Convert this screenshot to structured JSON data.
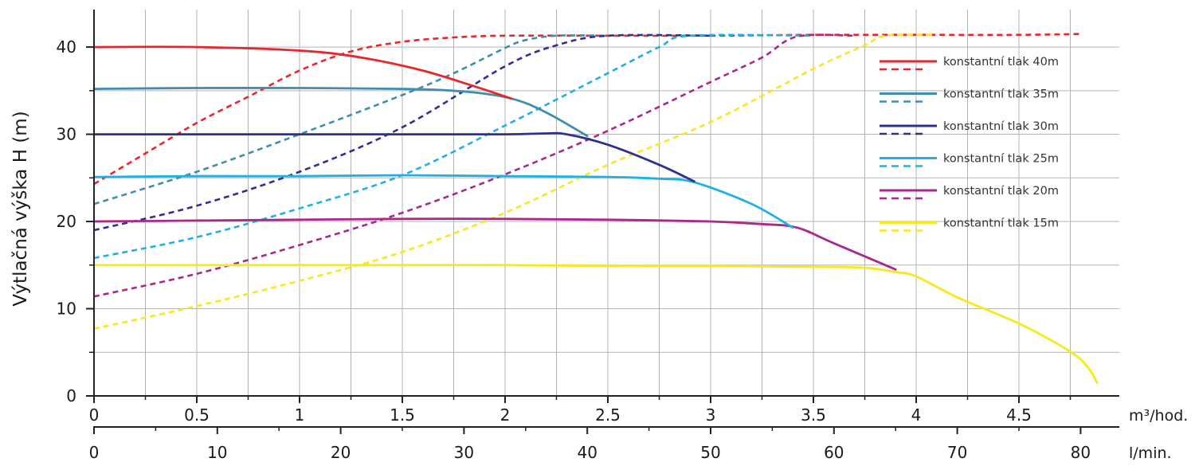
{
  "chart_data": {
    "type": "line",
    "title": "",
    "ylabel": "Výtlačná výška H (m)",
    "ylim": [
      0,
      43
    ],
    "y_ticks": [
      0,
      10,
      20,
      30,
      40
    ],
    "x_axes": [
      {
        "unit": "m³/hod.",
        "range": [
          0,
          5
        ],
        "ticks": [
          0,
          0.5,
          1,
          1.5,
          2,
          2.5,
          3,
          3.5,
          4,
          4.5
        ],
        "tick_labels": [
          "0",
          "0.5",
          "1",
          "1.5",
          "2",
          "2.5",
          "3",
          "3.5",
          "4",
          "4.5"
        ]
      },
      {
        "unit": "l/min.",
        "range": [
          0,
          83.3
        ],
        "ticks": [
          0,
          10,
          20,
          30,
          40,
          50,
          60,
          70,
          80
        ],
        "tick_labels": [
          "0",
          "10",
          "20",
          "30",
          "40",
          "50",
          "60",
          "70",
          "80"
        ]
      }
    ],
    "grid": true,
    "legend_position": "top-right",
    "series": [
      {
        "name": "konstantní tlak 40m",
        "color": "#e8262b",
        "solid": [
          [
            0,
            40
          ],
          [
            0.5,
            40
          ],
          [
            1,
            39.6
          ],
          [
            1.3,
            38.8
          ],
          [
            1.6,
            37.3
          ],
          [
            1.85,
            35.5
          ],
          [
            2.03,
            34.1
          ]
        ],
        "dashed": [
          [
            0,
            24.3
          ],
          [
            0.25,
            27.8
          ],
          [
            0.5,
            31.3
          ],
          [
            0.75,
            34.3
          ],
          [
            1,
            37.3
          ],
          [
            1.25,
            39.5
          ],
          [
            1.5,
            40.6
          ],
          [
            1.75,
            41.1
          ],
          [
            2,
            41.3
          ],
          [
            2.5,
            41.3
          ],
          [
            3,
            41.3
          ],
          [
            3.5,
            41.4
          ],
          [
            4,
            41.4
          ],
          [
            4.5,
            41.4
          ],
          [
            4.8,
            41.5
          ]
        ]
      },
      {
        "name": "konstantní tlak 35m",
        "color": "#3f8eae",
        "solid": [
          [
            0,
            35.2
          ],
          [
            0.5,
            35.3
          ],
          [
            1,
            35.3
          ],
          [
            1.5,
            35.2
          ],
          [
            1.8,
            34.9
          ],
          [
            2.03,
            34.1
          ],
          [
            2.2,
            32.5
          ],
          [
            2.4,
            29.8
          ]
        ],
        "dashed": [
          [
            0,
            22
          ],
          [
            0.5,
            25.7
          ],
          [
            1,
            30
          ],
          [
            1.5,
            34.5
          ],
          [
            1.75,
            37
          ],
          [
            2,
            39.9
          ],
          [
            2.1,
            40.8
          ],
          [
            2.25,
            41.3
          ],
          [
            2.5,
            41.3
          ]
        ]
      },
      {
        "name": "konstantní tlak 30m",
        "color": "#2e3192",
        "solid": [
          [
            0,
            30
          ],
          [
            0.5,
            30
          ],
          [
            1,
            30
          ],
          [
            1.5,
            30
          ],
          [
            2,
            30
          ],
          [
            2.2,
            30.1
          ],
          [
            2.3,
            30
          ],
          [
            2.5,
            28.8
          ],
          [
            2.75,
            26.5
          ],
          [
            2.92,
            24.6
          ]
        ],
        "dashed": [
          [
            0,
            19
          ],
          [
            0.5,
            21.8
          ],
          [
            1,
            25.7
          ],
          [
            1.5,
            30.8
          ],
          [
            2,
            37.8
          ],
          [
            2.25,
            40.2
          ],
          [
            2.5,
            41.3
          ],
          [
            3,
            41.3
          ]
        ]
      },
      {
        "name": "konstantní tlak 25m",
        "color": "#1eb1e6",
        "solid": [
          [
            0,
            25.1
          ],
          [
            0.5,
            25.2
          ],
          [
            1,
            25.2
          ],
          [
            1.5,
            25.3
          ],
          [
            2,
            25.2
          ],
          [
            2.5,
            25.1
          ],
          [
            2.75,
            24.9
          ],
          [
            2.92,
            24.5
          ],
          [
            3.2,
            22
          ],
          [
            3.4,
            19.3
          ]
        ],
        "dashed": [
          [
            0,
            15.8
          ],
          [
            0.5,
            18.2
          ],
          [
            1,
            21.5
          ],
          [
            1.5,
            25.3
          ],
          [
            2,
            31
          ],
          [
            2.5,
            37
          ],
          [
            2.75,
            40
          ],
          [
            2.9,
            41.3
          ],
          [
            3.5,
            41.3
          ]
        ]
      },
      {
        "name": "konstantní tlak 20m",
        "color": "#a8288e",
        "solid": [
          [
            0,
            20
          ],
          [
            0.5,
            20.1
          ],
          [
            1,
            20.2
          ],
          [
            1.5,
            20.3
          ],
          [
            2,
            20.3
          ],
          [
            2.5,
            20.2
          ],
          [
            3,
            20
          ],
          [
            3.25,
            19.7
          ],
          [
            3.42,
            19.3
          ],
          [
            3.6,
            17.5
          ],
          [
            3.9,
            14.5
          ]
        ],
        "dashed": [
          [
            0,
            11.4
          ],
          [
            0.5,
            14
          ],
          [
            1,
            17.3
          ],
          [
            1.5,
            21
          ],
          [
            2,
            25.4
          ],
          [
            2.5,
            30.4
          ],
          [
            3,
            36
          ],
          [
            3.25,
            38.8
          ],
          [
            3.42,
            41.2
          ],
          [
            3.7,
            41.3
          ]
        ]
      },
      {
        "name": "konstantní tlak 15m",
        "color": "#f8e81c",
        "solid": [
          [
            0,
            15
          ],
          [
            0.5,
            15
          ],
          [
            1,
            15
          ],
          [
            1.5,
            15
          ],
          [
            2,
            15
          ],
          [
            2.5,
            14.9
          ],
          [
            3,
            14.9
          ],
          [
            3.5,
            14.8
          ],
          [
            3.75,
            14.7
          ],
          [
            3.9,
            14.2
          ],
          [
            4,
            13.7
          ],
          [
            4.2,
            11.3
          ],
          [
            4.5,
            8.3
          ],
          [
            4.7,
            5.8
          ],
          [
            4.8,
            4.2
          ],
          [
            4.85,
            2.8
          ],
          [
            4.88,
            1.5
          ]
        ],
        "dashed": [
          [
            0,
            7.7
          ],
          [
            0.5,
            10.3
          ],
          [
            1,
            13.2
          ],
          [
            1.5,
            16.5
          ],
          [
            2,
            21
          ],
          [
            2.5,
            26.5
          ],
          [
            3,
            31.4
          ],
          [
            3.5,
            37.5
          ],
          [
            3.75,
            40.2
          ],
          [
            3.85,
            41.3
          ],
          [
            4.1,
            41.4
          ]
        ]
      }
    ]
  }
}
